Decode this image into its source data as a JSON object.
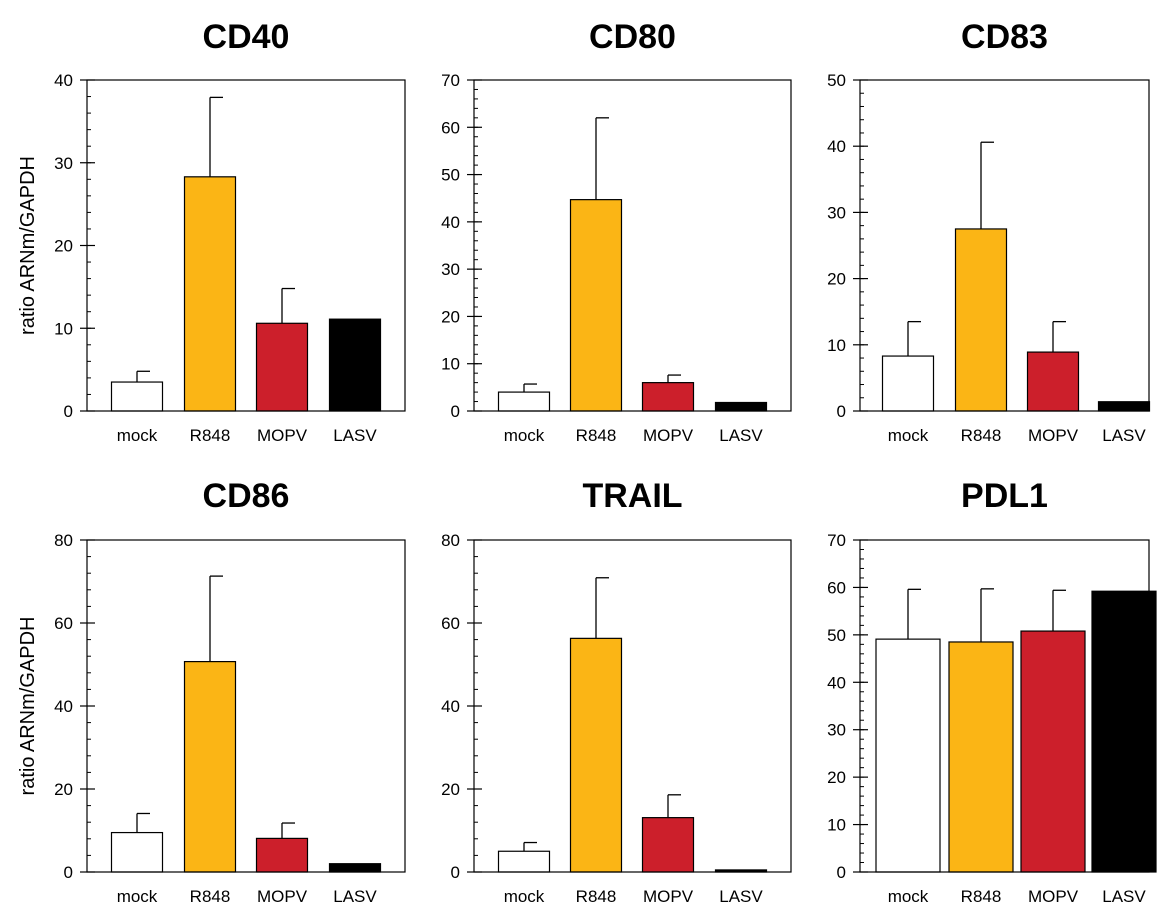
{
  "figure": {
    "ylabel": "ratio ARNm/GAPDH",
    "bar_colors": [
      "#ffffff",
      "#fbb515",
      "#cc1f2b",
      "#000000"
    ]
  },
  "chart_data": [
    {
      "type": "bar",
      "title": "CD40",
      "ylabel": "ratio ARNm/GAPDH",
      "categories": [
        "mock",
        "R848",
        "MOPV",
        "LASV"
      ],
      "values": [
        3.5,
        28.3,
        10.6,
        11.1
      ],
      "error_upper": [
        4.8,
        37.9,
        14.8,
        null
      ],
      "ylim": [
        0,
        40
      ],
      "yticks": [
        0,
        10,
        20,
        30,
        40
      ],
      "minor_step": 2
    },
    {
      "type": "bar",
      "title": "CD80",
      "ylabel": "",
      "categories": [
        "mock",
        "R848",
        "MOPV",
        "LASV"
      ],
      "values": [
        4.0,
        44.7,
        6.0,
        1.8
      ],
      "error_upper": [
        5.7,
        62.0,
        7.6,
        null
      ],
      "ylim": [
        0,
        70
      ],
      "yticks": [
        0,
        10,
        20,
        30,
        40,
        50,
        60,
        70
      ],
      "minor_step": 2
    },
    {
      "type": "bar",
      "title": "CD83",
      "ylabel": "",
      "categories": [
        "mock",
        "R848",
        "MOPV",
        "LASV"
      ],
      "values": [
        8.3,
        27.5,
        8.9,
        1.4
      ],
      "error_upper": [
        13.5,
        40.6,
        13.5,
        null
      ],
      "ylim": [
        0,
        50
      ],
      "yticks": [
        0,
        10,
        20,
        30,
        40,
        50
      ],
      "minor_step": 2
    },
    {
      "type": "bar",
      "title": "CD86",
      "ylabel": "ratio ARNm/GAPDH",
      "categories": [
        "mock",
        "R848",
        "MOPV",
        "LASV"
      ],
      "values": [
        9.5,
        50.7,
        8.1,
        2.0
      ],
      "error_upper": [
        14.1,
        71.3,
        11.8,
        null
      ],
      "ylim": [
        0,
        80
      ],
      "yticks": [
        0,
        20,
        40,
        60,
        80
      ],
      "minor_step": 4
    },
    {
      "type": "bar",
      "title": "TRAIL",
      "ylabel": "",
      "categories": [
        "mock",
        "R848",
        "MOPV",
        "LASV"
      ],
      "values": [
        5.0,
        56.3,
        13.1,
        0.5
      ],
      "error_upper": [
        7.1,
        70.9,
        18.6,
        null
      ],
      "ylim": [
        0,
        80
      ],
      "yticks": [
        0,
        20,
        40,
        60,
        80
      ],
      "minor_step": 4
    },
    {
      "type": "bar",
      "title": "PDL1",
      "ylabel": "",
      "categories": [
        "mock",
        "R848",
        "MOPV",
        "LASV"
      ],
      "values": [
        49.1,
        48.5,
        50.8,
        59.2
      ],
      "error_upper": [
        59.6,
        59.7,
        59.4,
        null
      ],
      "ylim": [
        0,
        70
      ],
      "yticks": [
        0,
        10,
        20,
        30,
        40,
        50,
        60,
        70
      ],
      "minor_step": 2
    }
  ]
}
